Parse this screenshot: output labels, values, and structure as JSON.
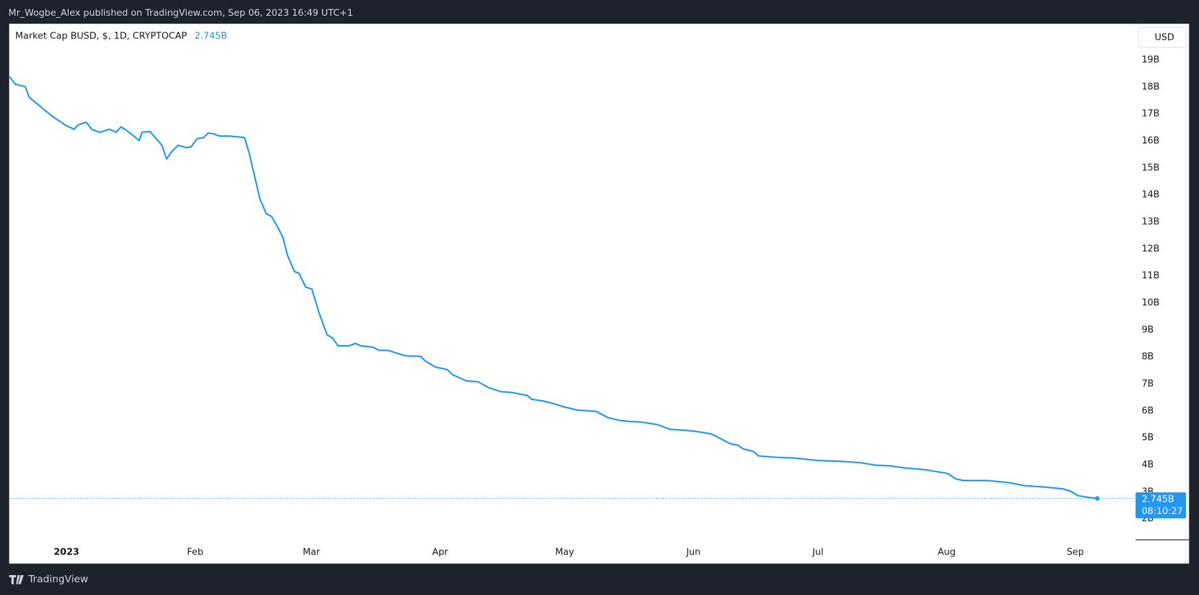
{
  "header": {
    "publisher": "Mr_Wogbe_Alex published on TradingView.com, Sep 06, 2023 16:49 UTC+1"
  },
  "footer": {
    "brand": "TradingView"
  },
  "chart_data": {
    "type": "line",
    "currency_button": "USD",
    "last_price_label": "2.745B",
    "countdown": "08:10:27",
    "x": [
      -13.8,
      -12.3,
      -9.9,
      -9.0,
      -6.8,
      -5.0,
      -3.1,
      -0.4,
      1.8,
      2.9,
      4.8,
      6.1,
      8.0,
      10.3,
      12.0,
      13.1,
      14.4,
      16.2,
      17.5,
      18.2,
      20.1,
      21.4,
      23.0,
      24.1,
      25.4,
      26.9,
      28.9,
      30.0,
      31.5,
      33.0,
      34.1,
      35.5,
      36.8,
      39.2,
      41.4,
      42.9,
      44.0,
      45.3,
      46.6,
      48.1,
      49.4,
      50.7,
      52.1,
      53.2,
      54.9,
      56.0,
      57.6,
      59.1,
      60.9,
      62.8,
      64.1,
      65.4,
      68.1,
      69.6,
      70.9,
      73.8,
      75.3,
      77.5,
      79.7,
      81.6,
      85.3,
      86.4,
      88.9,
      91.7,
      93.0,
      96.3,
      99.1,
      101.8,
      104.6,
      107.4,
      111.0,
      112.0,
      114.7,
      117.5,
      119.3,
      123.0,
      127.6,
      130.4,
      133.5,
      135.4,
      138.7,
      142.4,
      145.3,
      149.7,
      151.6,
      155.2,
      157.1,
      159.9,
      161.7,
      163.0,
      165.4,
      166.7,
      170.9,
      175.5,
      181.0,
      186.6,
      191.2,
      194.8,
      198.5,
      202.2,
      206.8,
      212.3,
      214.2,
      216.0,
      221.5,
      227.1,
      230.7,
      236.2,
      240.0,
      241.8,
      243.6,
      245.9,
      248.3
    ],
    "series": [
      {
        "name": "Market Cap BUSD, $, 1D, CRYPTOCAP",
        "color": "#2196f3",
        "values": [
          18.38,
          18.09,
          18.0,
          17.61,
          17.33,
          17.1,
          16.87,
          16.59,
          16.42,
          16.59,
          16.68,
          16.42,
          16.31,
          16.42,
          16.31,
          16.51,
          16.39,
          16.17,
          16.0,
          16.31,
          16.34,
          16.11,
          15.83,
          15.32,
          15.6,
          15.83,
          15.74,
          15.77,
          16.08,
          16.11,
          16.28,
          16.25,
          16.17,
          16.17,
          16.14,
          16.11,
          15.54,
          14.69,
          13.84,
          13.3,
          13.19,
          12.85,
          12.43,
          11.77,
          11.15,
          11.09,
          10.58,
          10.5,
          9.59,
          8.8,
          8.69,
          8.4,
          8.4,
          8.49,
          8.4,
          8.35,
          8.23,
          8.23,
          8.12,
          8.03,
          8.01,
          7.84,
          7.61,
          7.52,
          7.33,
          7.1,
          7.07,
          6.84,
          6.7,
          6.67,
          6.56,
          6.42,
          6.36,
          6.25,
          6.16,
          6.02,
          5.97,
          5.74,
          5.63,
          5.6,
          5.57,
          5.48,
          5.31,
          5.26,
          5.23,
          5.14,
          5.0,
          4.77,
          4.72,
          4.58,
          4.49,
          4.32,
          4.27,
          4.24,
          4.15,
          4.12,
          4.07,
          3.98,
          3.95,
          3.87,
          3.81,
          3.67,
          3.47,
          3.41,
          3.41,
          3.33,
          3.22,
          3.16,
          3.1,
          3.02,
          2.85,
          2.79,
          2.745
        ]
      }
    ],
    "xlim": [
      -13.8,
      257.5
    ],
    "xticks": [
      {
        "value": 0,
        "label": "2023"
      },
      {
        "value": 31,
        "label": "Feb"
      },
      {
        "value": 59,
        "label": "Mar"
      },
      {
        "value": 90,
        "label": "Apr"
      },
      {
        "value": 120,
        "label": "May"
      },
      {
        "value": 151,
        "label": "Jun"
      },
      {
        "value": 181,
        "label": "Jul"
      },
      {
        "value": 212,
        "label": "Aug"
      },
      {
        "value": 243,
        "label": "Sep"
      }
    ],
    "ylim": [
      1.21,
      20.33
    ],
    "yticks": [
      {
        "value": 2,
        "label": "2B"
      },
      {
        "value": 3,
        "label": "3B"
      },
      {
        "value": 4,
        "label": "4B"
      },
      {
        "value": 5,
        "label": "5B"
      },
      {
        "value": 6,
        "label": "6B"
      },
      {
        "value": 7,
        "label": "7B"
      },
      {
        "value": 8,
        "label": "8B"
      },
      {
        "value": 9,
        "label": "9B"
      },
      {
        "value": 10,
        "label": "10B"
      },
      {
        "value": 11,
        "label": "11B"
      },
      {
        "value": 12,
        "label": "12B"
      },
      {
        "value": 13,
        "label": "13B"
      },
      {
        "value": 14,
        "label": "14B"
      },
      {
        "value": 15,
        "label": "15B"
      },
      {
        "value": 16,
        "label": "16B"
      },
      {
        "value": 17,
        "label": "17B"
      },
      {
        "value": 18,
        "label": "18B"
      },
      {
        "value": 19,
        "label": "19B"
      }
    ],
    "grid": false
  }
}
